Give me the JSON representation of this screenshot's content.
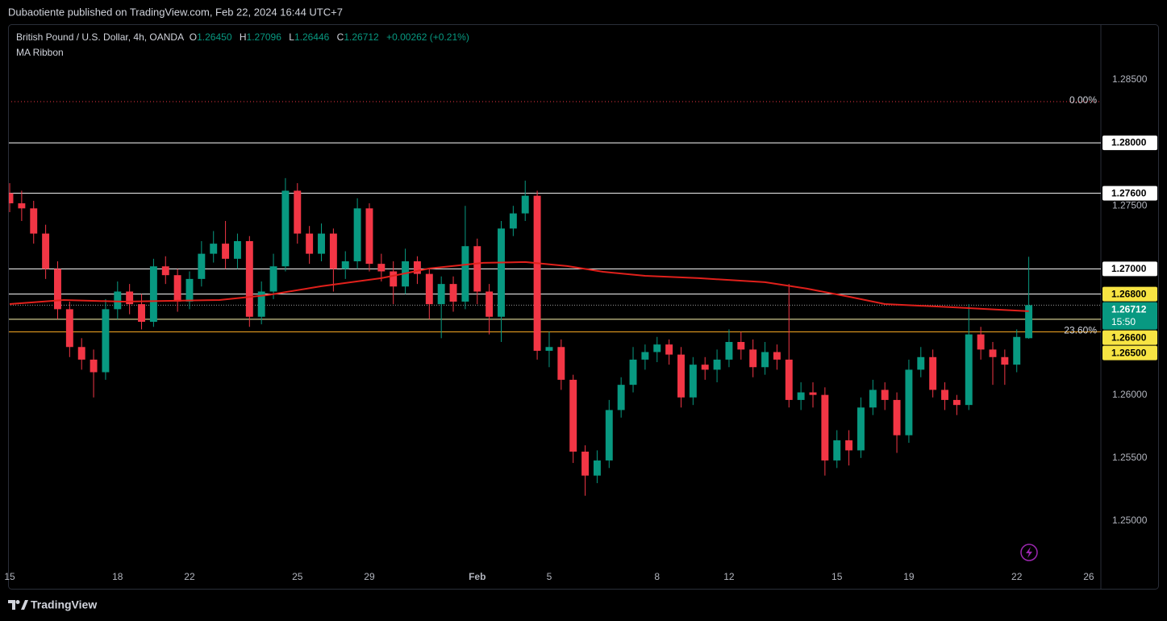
{
  "header": {
    "title": "Dubaotiente published on TradingView.com, Feb 22, 2024 16:44 UTC+7"
  },
  "footer": {
    "brand": "TradingView"
  },
  "chart_data": {
    "type": "candlestick",
    "symbol": "British Pound / U.S. Dollar, 4h, OANDA",
    "ohlc_legend": [
      {
        "key": "O",
        "value": "1.26450"
      },
      {
        "key": "H",
        "value": "1.27096"
      },
      {
        "key": "L",
        "value": "1.26446"
      },
      {
        "key": "C",
        "value": "1.26712"
      }
    ],
    "change": "+0.00262 (+0.21%)",
    "up_color": "#089981",
    "down_color": "#f23645",
    "xlim": [
      -0.27,
      182.03
    ],
    "ylim": [
      1.24635,
      1.28941
    ],
    "xticks": [
      {
        "value": 0,
        "label": "15"
      },
      {
        "value": 18,
        "label": "18"
      },
      {
        "value": 30,
        "label": "22"
      },
      {
        "value": 48,
        "label": "25"
      },
      {
        "value": 60,
        "label": "29"
      },
      {
        "value": 78,
        "label": "Feb"
      },
      {
        "value": 90,
        "label": "5"
      },
      {
        "value": 108,
        "label": "8"
      },
      {
        "value": 120,
        "label": "12"
      },
      {
        "value": 138,
        "label": "15"
      },
      {
        "value": 150,
        "label": "19"
      },
      {
        "value": 168,
        "label": "22"
      },
      {
        "value": 180,
        "label": "26"
      }
    ],
    "yticks": [
      {
        "value": 1.285,
        "label": "1.28500"
      },
      {
        "value": 1.275,
        "label": "1.27500"
      },
      {
        "value": 1.26,
        "label": "1.26000"
      },
      {
        "value": 1.255,
        "label": "1.25500"
      },
      {
        "value": 1.25,
        "label": "1.25000"
      }
    ],
    "x": [
      0,
      2,
      4,
      6,
      8,
      10,
      12,
      14,
      16,
      18,
      20,
      22,
      24,
      26,
      28,
      30,
      32,
      34,
      36,
      38,
      40,
      42,
      44,
      46,
      48,
      50,
      52,
      54,
      56,
      58,
      60,
      62,
      64,
      66,
      68,
      70,
      72,
      74,
      76,
      78,
      80,
      82,
      84,
      86,
      88,
      90,
      92,
      94,
      96,
      98,
      100,
      102,
      104,
      106,
      108,
      110,
      112,
      114,
      116,
      118,
      120,
      122,
      124,
      126,
      128,
      130,
      132,
      134,
      136,
      138,
      140,
      142,
      144,
      146,
      148,
      150,
      152,
      154,
      156,
      158,
      160,
      162,
      164,
      166,
      168,
      170
    ],
    "open": [
      1.276,
      1.2752,
      1.2748,
      1.2728,
      1.27,
      1.2668,
      1.2638,
      1.2628,
      1.2618,
      1.2668,
      1.2682,
      1.2672,
      1.2658,
      1.2702,
      1.2695,
      1.2674,
      1.2692,
      1.2712,
      1.272,
      1.2708,
      1.2722,
      1.2662,
      1.2682,
      1.2702,
      1.2762,
      1.2728,
      1.2712,
      1.2728,
      1.27,
      1.2706,
      1.2748,
      1.2704,
      1.2698,
      1.2686,
      1.2706,
      1.2696,
      1.2672,
      1.2688,
      1.2674,
      1.2718,
      1.2682,
      1.2662,
      1.2732,
      1.2744,
      1.2758,
      1.2635,
      1.2638,
      1.2612,
      1.2555,
      1.2536,
      1.2548,
      1.2588,
      1.2608,
      1.2628,
      1.2634,
      1.264,
      1.2632,
      1.2598,
      1.2624,
      1.262,
      1.2628,
      1.2642,
      1.2636,
      1.2622,
      1.2634,
      1.2628,
      1.2596,
      1.2602,
      1.26,
      1.2548,
      1.2564,
      1.2556,
      1.259,
      1.2604,
      1.2596,
      1.2568,
      1.262,
      1.263,
      1.2604,
      1.2596,
      1.2592,
      1.2648,
      1.2636,
      1.263,
      1.2624,
      1.2645
    ],
    "high": [
      1.2768,
      1.2762,
      1.2754,
      1.2735,
      1.2706,
      1.2674,
      1.2645,
      1.2636,
      1.2676,
      1.269,
      1.2688,
      1.268,
      1.2708,
      1.271,
      1.27,
      1.2698,
      1.2722,
      1.273,
      1.2738,
      1.2728,
      1.2726,
      1.269,
      1.2712,
      1.2772,
      1.2768,
      1.2734,
      1.2736,
      1.2732,
      1.2714,
      1.2756,
      1.2752,
      1.2712,
      1.2706,
      1.2716,
      1.271,
      1.27,
      1.2694,
      1.2694,
      1.275,
      1.2724,
      1.2688,
      1.2738,
      1.275,
      1.277,
      1.2762,
      1.265,
      1.2644,
      1.2616,
      1.256,
      1.2556,
      1.2596,
      1.2614,
      1.2638,
      1.264,
      1.2646,
      1.2644,
      1.2638,
      1.263,
      1.263,
      1.2636,
      1.2652,
      1.265,
      1.2644,
      1.2642,
      1.264,
      1.2688,
      1.261,
      1.261,
      1.2606,
      1.2572,
      1.2572,
      1.2598,
      1.2612,
      1.261,
      1.2602,
      1.2628,
      1.2638,
      1.2636,
      1.261,
      1.26,
      1.2672,
      1.2654,
      1.2642,
      1.2636,
      1.2652,
      1.27096
    ],
    "low": [
      1.2745,
      1.2738,
      1.272,
      1.2692,
      1.266,
      1.263,
      1.262,
      1.2598,
      1.2612,
      1.266,
      1.2664,
      1.2652,
      1.2654,
      1.2688,
      1.2666,
      1.2668,
      1.2686,
      1.2705,
      1.27,
      1.27,
      1.2654,
      1.2656,
      1.2676,
      1.2698,
      1.272,
      1.2704,
      1.2706,
      1.2682,
      1.2692,
      1.27,
      1.2698,
      1.269,
      1.2672,
      1.268,
      1.2688,
      1.266,
      1.2645,
      1.2666,
      1.2668,
      1.2672,
      1.2648,
      1.2642,
      1.2726,
      1.2738,
      1.2628,
      1.2622,
      1.2604,
      1.2546,
      1.252,
      1.253,
      1.2542,
      1.2582,
      1.2602,
      1.262,
      1.2626,
      1.2624,
      1.259,
      1.2592,
      1.2612,
      1.261,
      1.2622,
      1.2628,
      1.2614,
      1.2616,
      1.262,
      1.259,
      1.2588,
      1.259,
      1.2536,
      1.2542,
      1.2544,
      1.255,
      1.2584,
      1.2588,
      1.2554,
      1.2562,
      1.2614,
      1.2598,
      1.2588,
      1.2584,
      1.2588,
      1.2628,
      1.2608,
      1.2608,
      1.2618,
      1.26446
    ],
    "close": [
      1.2752,
      1.2748,
      1.2728,
      1.27,
      1.2668,
      1.2638,
      1.2628,
      1.2618,
      1.2668,
      1.2682,
      1.2672,
      1.2658,
      1.2702,
      1.2695,
      1.2674,
      1.2692,
      1.2712,
      1.272,
      1.2708,
      1.2722,
      1.2662,
      1.2682,
      1.2702,
      1.2762,
      1.2728,
      1.2712,
      1.2728,
      1.27,
      1.2706,
      1.2748,
      1.2704,
      1.2698,
      1.2686,
      1.2706,
      1.2696,
      1.2672,
      1.2688,
      1.2674,
      1.2718,
      1.2682,
      1.2662,
      1.2732,
      1.2744,
      1.2758,
      1.2635,
      1.2638,
      1.2612,
      1.2555,
      1.2536,
      1.2548,
      1.2588,
      1.2608,
      1.2628,
      1.2634,
      1.264,
      1.2632,
      1.2598,
      1.2624,
      1.262,
      1.2628,
      1.2642,
      1.2636,
      1.2622,
      1.2634,
      1.2628,
      1.2596,
      1.2602,
      1.26,
      1.2548,
      1.2564,
      1.2556,
      1.259,
      1.2604,
      1.2596,
      1.2568,
      1.262,
      1.263,
      1.2604,
      1.2596,
      1.2592,
      1.2648,
      1.2636,
      1.263,
      1.2624,
      1.2646,
      1.26712
    ],
    "ma": {
      "name": "MA Ribbon",
      "color": "#e0201b",
      "x": [
        0,
        9,
        19,
        35,
        43,
        52,
        62,
        70,
        79,
        86,
        93,
        99,
        106,
        115,
        126,
        133,
        140,
        146,
        157,
        165,
        170
      ],
      "values": [
        1.26721,
        1.26753,
        1.2674,
        1.26753,
        1.26792,
        1.26862,
        1.26926,
        1.27003,
        1.27048,
        1.27054,
        1.27022,
        1.26977,
        1.26945,
        1.26926,
        1.26894,
        1.26843,
        1.26779,
        1.26721,
        1.26696,
        1.26676,
        1.26664
      ]
    },
    "levels": [
      {
        "value": 1.28,
        "label": "1.28000",
        "color": "#ffffff",
        "badge": "#ffffff"
      },
      {
        "value": 1.276,
        "label": "1.27600",
        "color": "#ffffff",
        "badge": "#ffffff"
      },
      {
        "value": 1.27,
        "label": "1.27000",
        "color": "#ffffff",
        "badge": "#ffffff"
      },
      {
        "value": 1.268,
        "label": "1.26800",
        "color": "#ffffff",
        "badge": "#f7e443"
      },
      {
        "value": 1.266,
        "label": "1.26600",
        "color": "#fff8b0",
        "badge": "#f7e443"
      },
      {
        "value": 1.265,
        "label": "1.26500",
        "color": "#f5a623",
        "badge": "#f7e443"
      }
    ],
    "fib": [
      {
        "value": 1.28327,
        "label": "0.00%",
        "color": "#f23645"
      },
      {
        "value": 1.265,
        "label": "23.60%",
        "color": "#f5a623"
      }
    ],
    "last_price": {
      "value": 1.26712,
      "label": "1.26712",
      "countdown": "15:50",
      "color": "#089981"
    }
  }
}
